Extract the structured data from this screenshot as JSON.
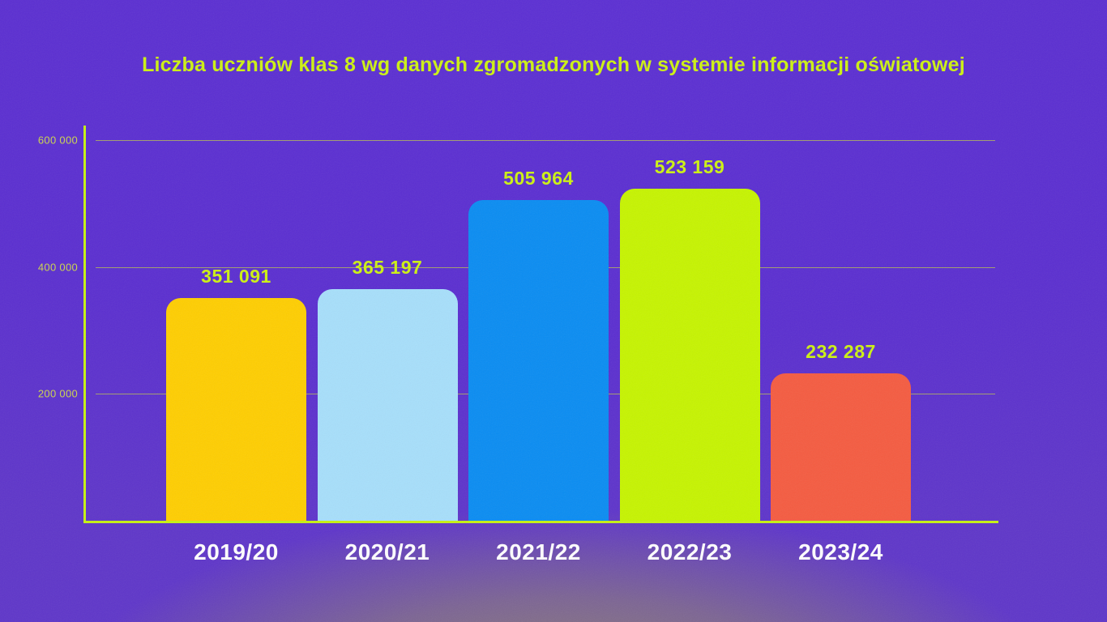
{
  "page": {
    "background_color": "#5a2dd0",
    "bottom_glow_color": "#948a68"
  },
  "chart_data": {
    "type": "bar",
    "title": "Liczba uczniów klas 8 wg danych zgromadzonych w systemie informacji oświatowej",
    "categories": [
      "2019/20",
      "2020/21",
      "2021/22",
      "2022/23",
      "2023/24"
    ],
    "values": [
      351091,
      365197,
      505964,
      523159,
      232287
    ],
    "value_labels": [
      "351 091",
      "365 197",
      "505 964",
      "523 159",
      "232 287"
    ],
    "bar_colors": [
      "#ffce00",
      "#a7dffb",
      "#098cf2",
      "#c6f400",
      "#f55b40"
    ],
    "y_ticks": [
      {
        "label": "600 000",
        "value": 600000
      },
      {
        "label": "400 000",
        "value": 400000
      },
      {
        "label": "200 000",
        "value": 200000
      }
    ],
    "ylim": [
      0,
      620000
    ],
    "xlabel": "",
    "ylabel": "",
    "grid": true,
    "legend": false,
    "title_color": "#cdf211",
    "value_label_color": "#cdf211",
    "tick_label_color": "#ccd64d",
    "axis_color": "#c6f211",
    "gridline_color": "#b9c24f",
    "category_label_color": "#ffffff"
  }
}
